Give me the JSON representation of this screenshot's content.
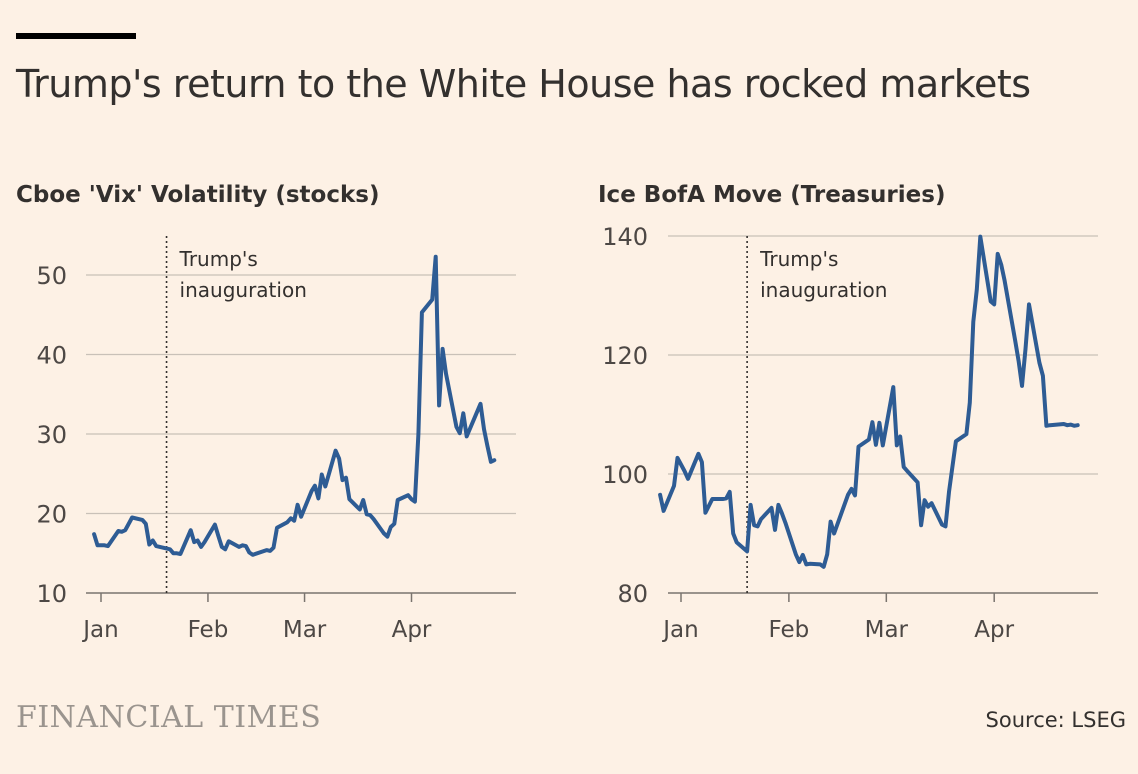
{
  "title": "Trump's return to the White House has rocked markets",
  "source": "Source: LSEG",
  "logo": "FINANCIAL TIMES",
  "colors": {
    "line": "#2e5c94",
    "grid": "#c9c1b8",
    "background": "#fdf1e5",
    "text": "#33302e"
  },
  "chart_data": [
    {
      "type": "line",
      "title": "Cboe 'Vix' Volatility (stocks)",
      "annotation": "Trump's\ninauguration",
      "annotation_x": "2025-01-20",
      "ylim": [
        10,
        55
      ],
      "yticks": [
        10,
        20,
        30,
        40,
        50
      ],
      "xticks": [
        {
          "label": "Jan",
          "date": "2025-01-01"
        },
        {
          "label": "Feb",
          "date": "2025-02-01"
        },
        {
          "label": "Mar",
          "date": "2025-03-01"
        },
        {
          "label": "Apr",
          "date": "2025-04-01"
        }
      ],
      "grid": true,
      "series": [
        {
          "x": [
            "2024-12-30",
            "2024-12-31",
            "2025-01-02",
            "2025-01-03",
            "2025-01-06",
            "2025-01-07",
            "2025-01-08",
            "2025-01-10",
            "2025-01-13",
            "2025-01-14",
            "2025-01-15",
            "2025-01-16",
            "2025-01-17",
            "2025-01-21",
            "2025-01-22",
            "2025-01-23",
            "2025-01-24",
            "2025-01-27",
            "2025-01-28",
            "2025-01-29",
            "2025-01-30",
            "2025-01-31",
            "2025-02-03",
            "2025-02-04",
            "2025-02-05",
            "2025-02-06",
            "2025-02-07",
            "2025-02-10",
            "2025-02-11",
            "2025-02-12",
            "2025-02-13",
            "2025-02-14",
            "2025-02-18",
            "2025-02-19",
            "2025-02-20",
            "2025-02-21",
            "2025-02-24",
            "2025-02-25",
            "2025-02-26",
            "2025-02-27",
            "2025-02-28",
            "2025-03-03",
            "2025-03-04",
            "2025-03-05",
            "2025-03-06",
            "2025-03-07",
            "2025-03-10",
            "2025-03-11",
            "2025-03-12",
            "2025-03-13",
            "2025-03-14",
            "2025-03-17",
            "2025-03-18",
            "2025-03-19",
            "2025-03-20",
            "2025-03-21",
            "2025-03-24",
            "2025-03-25",
            "2025-03-26",
            "2025-03-27",
            "2025-03-28",
            "2025-03-31",
            "2025-04-01",
            "2025-04-02",
            "2025-04-03",
            "2025-04-04",
            "2025-04-07",
            "2025-04-08",
            "2025-04-09",
            "2025-04-10",
            "2025-04-11",
            "2025-04-14",
            "2025-04-15",
            "2025-04-16",
            "2025-04-17",
            "2025-04-21",
            "2025-04-22",
            "2025-04-23",
            "2025-04-24",
            "2025-04-25"
          ],
          "values": [
            17.4,
            16.0,
            16.0,
            15.9,
            17.8,
            17.7,
            17.9,
            19.5,
            19.2,
            18.7,
            16.1,
            16.6,
            15.9,
            15.5,
            15.0,
            15.0,
            14.9,
            17.9,
            16.4,
            16.6,
            15.8,
            16.4,
            18.6,
            17.2,
            15.8,
            15.5,
            16.5,
            15.8,
            16.0,
            15.9,
            15.1,
            14.8,
            15.4,
            15.3,
            15.7,
            18.2,
            18.9,
            19.4,
            19.1,
            21.1,
            19.6,
            22.8,
            23.5,
            21.9,
            24.9,
            23.4,
            27.9,
            26.9,
            24.2,
            24.5,
            21.8,
            20.5,
            21.7,
            19.9,
            19.8,
            19.3,
            17.5,
            17.1,
            18.3,
            18.7,
            21.7,
            22.3,
            21.8,
            21.5,
            30.0,
            45.3,
            46.9,
            52.3,
            33.6,
            40.7,
            37.6,
            30.9,
            30.1,
            32.6,
            29.7,
            33.8,
            30.6,
            28.5,
            26.5,
            26.7
          ]
        }
      ]
    },
    {
      "type": "line",
      "title": "Ice BofA Move (Treasuries)",
      "annotation": "Trump's\ninauguration",
      "annotation_x": "2025-01-20",
      "ylim": [
        80,
        140
      ],
      "yticks": [
        80,
        100,
        120,
        140
      ],
      "xticks": [
        {
          "label": "Jan",
          "date": "2025-01-01"
        },
        {
          "label": "Feb",
          "date": "2025-02-01"
        },
        {
          "label": "Mar",
          "date": "2025-03-01"
        },
        {
          "label": "Apr",
          "date": "2025-04-01"
        }
      ],
      "grid": true,
      "series": [
        {
          "x": [
            "2024-12-26",
            "2024-12-27",
            "2024-12-30",
            "2024-12-31",
            "2025-01-02",
            "2025-01-03",
            "2025-01-06",
            "2025-01-07",
            "2025-01-08",
            "2025-01-10",
            "2025-01-13",
            "2025-01-14",
            "2025-01-15",
            "2025-01-16",
            "2025-01-17",
            "2025-01-20",
            "2025-01-21",
            "2025-01-22",
            "2025-01-23",
            "2025-01-24",
            "2025-01-27",
            "2025-01-28",
            "2025-01-29",
            "2025-01-30",
            "2025-01-31",
            "2025-02-03",
            "2025-02-04",
            "2025-02-05",
            "2025-02-06",
            "2025-02-07",
            "2025-02-10",
            "2025-02-11",
            "2025-02-12",
            "2025-02-13",
            "2025-02-14",
            "2025-02-18",
            "2025-02-19",
            "2025-02-20",
            "2025-02-21",
            "2025-02-24",
            "2025-02-25",
            "2025-02-26",
            "2025-02-27",
            "2025-02-28",
            "2025-03-03",
            "2025-03-04",
            "2025-03-05",
            "2025-03-06",
            "2025-03-07",
            "2025-03-10",
            "2025-03-11",
            "2025-03-12",
            "2025-03-13",
            "2025-03-14",
            "2025-03-17",
            "2025-03-18",
            "2025-03-19",
            "2025-03-20",
            "2025-03-21",
            "2025-03-24",
            "2025-03-25",
            "2025-03-26",
            "2025-03-27",
            "2025-03-28",
            "2025-03-31",
            "2025-04-01",
            "2025-04-02",
            "2025-04-03",
            "2025-04-04",
            "2025-04-07",
            "2025-04-08",
            "2025-04-09",
            "2025-04-10",
            "2025-04-11",
            "2025-04-14",
            "2025-04-15",
            "2025-04-16",
            "2025-04-17",
            "2025-04-21",
            "2025-04-22",
            "2025-04-23",
            "2025-04-24",
            "2025-04-25"
          ],
          "values": [
            96.5,
            93.8,
            98.0,
            102.7,
            100.5,
            99.2,
            103.4,
            102.0,
            93.5,
            95.8,
            95.8,
            95.9,
            97.0,
            90.0,
            88.5,
            87.0,
            94.8,
            91.4,
            91.2,
            92.4,
            94.3,
            90.6,
            94.8,
            93.4,
            91.8,
            86.5,
            85.2,
            86.4,
            84.8,
            84.9,
            84.8,
            84.4,
            86.5,
            92.0,
            90.0,
            96.5,
            97.5,
            96.4,
            104.6,
            105.8,
            108.7,
            104.9,
            108.6,
            104.8,
            114.6,
            104.8,
            106.3,
            101.2,
            100.5,
            98.6,
            91.4,
            95.6,
            94.5,
            95.1,
            91.5,
            91.2,
            97.0,
            101.2,
            105.5,
            106.7,
            112.0,
            125.6,
            131.0,
            139.9,
            129.0,
            128.5,
            137.0,
            135.2,
            132.5,
            122.5,
            119.0,
            114.8,
            121.0,
            128.5,
            118.7,
            116.5,
            108.1,
            108.2,
            108.4,
            108.2,
            108.3,
            108.1,
            108.2
          ]
        }
      ]
    }
  ]
}
